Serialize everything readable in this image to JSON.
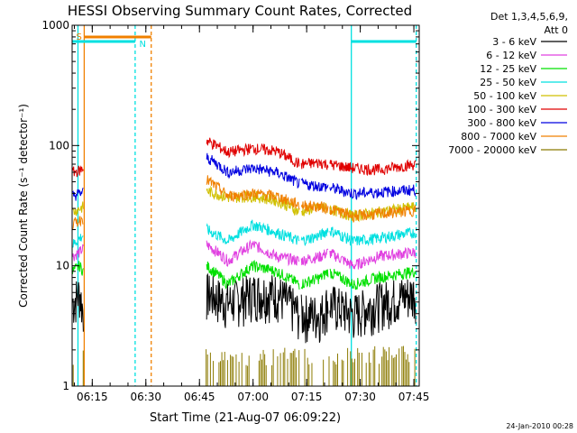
{
  "chart_data": {
    "type": "line",
    "title": "HESSI Observing Summary Count Rates, Corrected",
    "xlabel": "Start Time (21-Aug-07 06:09:22)",
    "ylabel": "Corrected Count Rate (s⁻¹ detector⁻¹)",
    "yscale": "log",
    "ylim": [
      1,
      1000
    ],
    "xlim": [
      "06:09:22",
      "07:46:30"
    ],
    "x_ticks": [
      "06:15",
      "06:30",
      "06:45",
      "07:00",
      "07:15",
      "07:30",
      "07:45"
    ],
    "y_ticks": [
      "1",
      "10",
      "100",
      "1000"
    ],
    "legend": {
      "placement": "right",
      "header": [
        "Det 1,3,4,5,6,9,",
        "Att 0"
      ]
    },
    "series": [
      {
        "name": "3 - 6 keV",
        "color": "#000000",
        "points": [
          [
            "06:09:30",
            5
          ],
          [
            "06:11:30",
            6
          ],
          [
            "06:12:30",
            4
          ],
          [
            "06:47:00",
            6
          ],
          [
            "06:53:00",
            5
          ],
          [
            "07:00:00",
            6
          ],
          [
            "07:06:30",
            6
          ],
          [
            "07:13:00",
            4
          ],
          [
            "07:19:00",
            4
          ],
          [
            "07:21:00",
            5
          ],
          [
            "07:28:00",
            4
          ],
          [
            "07:35:00",
            5
          ],
          [
            "07:45:30",
            6
          ]
        ]
      },
      {
        "name": "6 - 12 keV",
        "color": "#e040e0",
        "points": [
          [
            "06:09:30",
            12
          ],
          [
            "06:11:30",
            13
          ],
          [
            "06:12:30",
            14
          ],
          [
            "06:47:00",
            15
          ],
          [
            "06:53:00",
            11
          ],
          [
            "07:00:00",
            15
          ],
          [
            "07:06:30",
            12
          ],
          [
            "07:13:00",
            11
          ],
          [
            "07:19:00",
            12
          ],
          [
            "07:21:00",
            13
          ],
          [
            "07:28:00",
            10
          ],
          [
            "07:35:00",
            12
          ],
          [
            "07:45:30",
            13
          ]
        ]
      },
      {
        "name": "12 - 25 keV",
        "color": "#00e000",
        "points": [
          [
            "06:09:30",
            9
          ],
          [
            "06:11:30",
            10
          ],
          [
            "06:12:30",
            9
          ],
          [
            "06:47:00",
            10
          ],
          [
            "06:53:00",
            7
          ],
          [
            "07:00:00",
            10
          ],
          [
            "07:06:30",
            9
          ],
          [
            "07:13:00",
            7
          ],
          [
            "07:19:00",
            8
          ],
          [
            "07:21:00",
            9
          ],
          [
            "07:28:00",
            7
          ],
          [
            "07:35:00",
            8
          ],
          [
            "07:45:30",
            9
          ]
        ]
      },
      {
        "name": "25 - 50 keV",
        "color": "#00e0e0",
        "points": [
          [
            "06:09:30",
            15
          ],
          [
            "06:11:30",
            17
          ],
          [
            "06:12:30",
            18
          ],
          [
            "06:47:00",
            20
          ],
          [
            "06:53:00",
            16
          ],
          [
            "07:00:00",
            22
          ],
          [
            "07:06:30",
            19
          ],
          [
            "07:13:00",
            16
          ],
          [
            "07:19:00",
            18
          ],
          [
            "07:21:00",
            20
          ],
          [
            "07:28:00",
            16
          ],
          [
            "07:35:00",
            17
          ],
          [
            "07:45:30",
            19
          ]
        ]
      },
      {
        "name": "50 - 100 keV",
        "color": "#d0c000",
        "points": [
          [
            "06:09:30",
            28
          ],
          [
            "06:11:30",
            30
          ],
          [
            "06:12:30",
            31
          ],
          [
            "06:47:00",
            42
          ],
          [
            "06:53:00",
            37
          ],
          [
            "07:00:00",
            38
          ],
          [
            "07:06:30",
            35
          ],
          [
            "07:13:00",
            28
          ],
          [
            "07:19:00",
            31
          ],
          [
            "07:21:00",
            30
          ],
          [
            "07:28:00",
            26
          ],
          [
            "07:35:00",
            28
          ],
          [
            "07:45:30",
            31
          ]
        ]
      },
      {
        "name": "100 - 300 keV",
        "color": "#e00000",
        "points": [
          [
            "06:09:30",
            60
          ],
          [
            "06:11:30",
            62
          ],
          [
            "06:12:30",
            65
          ],
          [
            "06:47:00",
            110
          ],
          [
            "06:53:00",
            88
          ],
          [
            "07:00:00",
            95
          ],
          [
            "07:06:30",
            90
          ],
          [
            "07:13:00",
            70
          ],
          [
            "07:19:00",
            72
          ],
          [
            "07:21:00",
            70
          ],
          [
            "07:28:00",
            65
          ],
          [
            "07:35:00",
            63
          ],
          [
            "07:45:30",
            70
          ]
        ]
      },
      {
        "name": "300 - 800 keV",
        "color": "#0000e0",
        "points": [
          [
            "06:09:30",
            38
          ],
          [
            "06:11:30",
            40
          ],
          [
            "06:12:30",
            41
          ],
          [
            "06:47:00",
            80
          ],
          [
            "06:53:00",
            60
          ],
          [
            "07:00:00",
            65
          ],
          [
            "07:06:30",
            60
          ],
          [
            "07:13:00",
            48
          ],
          [
            "07:19:00",
            46
          ],
          [
            "07:21:00",
            45
          ],
          [
            "07:28:00",
            40
          ],
          [
            "07:35:00",
            41
          ],
          [
            "07:45:30",
            43
          ]
        ]
      },
      {
        "name": "800 - 7000 keV",
        "color": "#f08000",
        "points": [
          [
            "06:09:30",
            22
          ],
          [
            "06:11:30",
            24
          ],
          [
            "06:12:30",
            25
          ],
          [
            "06:47:00",
            52
          ],
          [
            "06:53:00",
            38
          ],
          [
            "07:00:00",
            40
          ],
          [
            "07:06:30",
            38
          ],
          [
            "07:13:00",
            32
          ],
          [
            "07:19:00",
            31
          ],
          [
            "07:21:00",
            30
          ],
          [
            "07:28:00",
            26
          ],
          [
            "07:35:00",
            27
          ],
          [
            "07:45:30",
            29
          ]
        ]
      },
      {
        "name": "7000 - 20000 keV",
        "color": "#8b7a00",
        "points": [
          [
            "06:09:30",
            1.7
          ],
          [
            "06:12:30",
            1.8
          ],
          [
            "06:47:00",
            1.8
          ],
          [
            "07:00:00",
            1.7
          ],
          [
            "07:13:00",
            1.8
          ],
          [
            "07:21:00",
            1.7
          ],
          [
            "07:35:00",
            1.8
          ],
          [
            "07:45:30",
            1.8
          ]
        ]
      }
    ],
    "annotations": [
      {
        "text": "S",
        "color": "#f08000"
      },
      {
        "text": "N",
        "color": "#00e0e0"
      }
    ],
    "grid": false
  },
  "footer": {
    "timestamp": "24-Jan-2010 00:28"
  }
}
